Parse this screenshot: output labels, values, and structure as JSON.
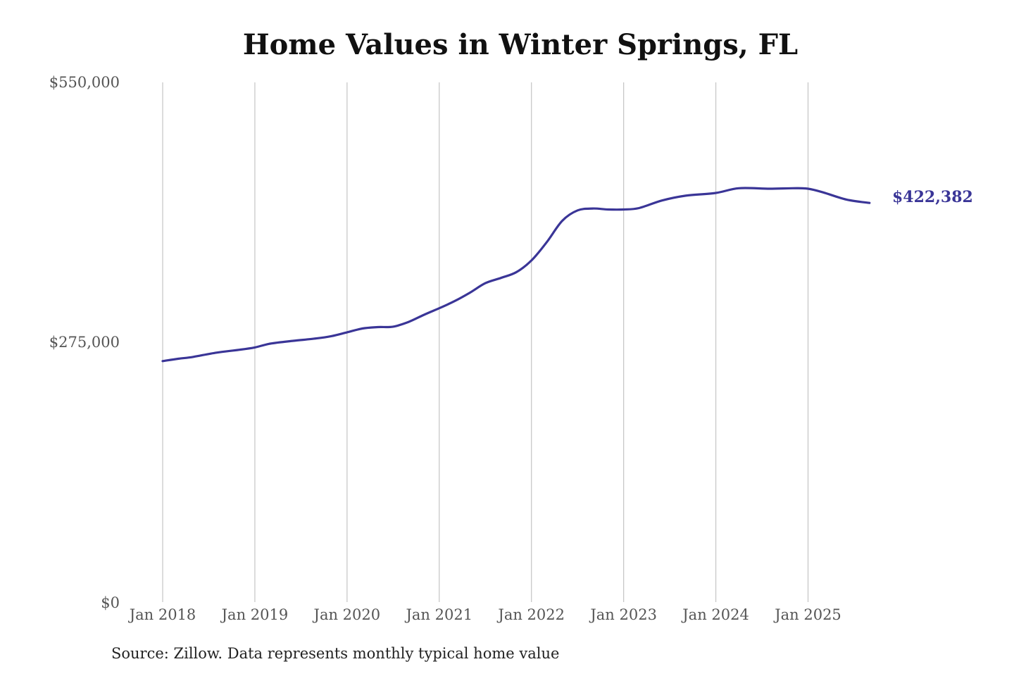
{
  "chart_data": {
    "type": "line",
    "title": "Home Values in Winter Springs, FL",
    "source": "Source: Zillow. Data represents monthly typical home value",
    "y_ticks": [
      {
        "value": 0,
        "label": "$0"
      },
      {
        "value": 275000,
        "label": "$275,000"
      },
      {
        "value": 550000,
        "label": "$550,000"
      }
    ],
    "ylim": [
      0,
      550000
    ],
    "x_ticks": [
      {
        "date": "2018-01",
        "label": "Jan 2018"
      },
      {
        "date": "2019-01",
        "label": "Jan 2019"
      },
      {
        "date": "2020-01",
        "label": "Jan 2020"
      },
      {
        "date": "2021-01",
        "label": "Jan 2021"
      },
      {
        "date": "2022-01",
        "label": "Jan 2022"
      },
      {
        "date": "2023-01",
        "label": "Jan 2023"
      },
      {
        "date": "2024-01",
        "label": "Jan 2024"
      },
      {
        "date": "2025-01",
        "label": "Jan 2025"
      }
    ],
    "grid": "vertical",
    "line_color": "#3a3597",
    "last_value_label": "$422,382",
    "series": [
      {
        "name": "",
        "points": [
          {
            "x": "2018-01",
            "y": 255000
          },
          {
            "x": "2018-03",
            "y": 257500
          },
          {
            "x": "2018-05",
            "y": 259500
          },
          {
            "x": "2018-08",
            "y": 264000
          },
          {
            "x": "2018-11",
            "y": 267000
          },
          {
            "x": "2019-01",
            "y": 269500
          },
          {
            "x": "2019-03",
            "y": 273500
          },
          {
            "x": "2019-06",
            "y": 276500
          },
          {
            "x": "2019-09",
            "y": 279000
          },
          {
            "x": "2019-11",
            "y": 281500
          },
          {
            "x": "2020-01",
            "y": 285500
          },
          {
            "x": "2020-03",
            "y": 289500
          },
          {
            "x": "2020-05",
            "y": 291000
          },
          {
            "x": "2020-07",
            "y": 291500
          },
          {
            "x": "2020-09",
            "y": 296500
          },
          {
            "x": "2020-11",
            "y": 304000
          },
          {
            "x": "2021-01",
            "y": 311000
          },
          {
            "x": "2021-03",
            "y": 318500
          },
          {
            "x": "2021-05",
            "y": 327500
          },
          {
            "x": "2021-07",
            "y": 337500
          },
          {
            "x": "2021-09",
            "y": 343000
          },
          {
            "x": "2021-11",
            "y": 349000
          },
          {
            "x": "2022-01",
            "y": 361500
          },
          {
            "x": "2022-03",
            "y": 381000
          },
          {
            "x": "2022-05",
            "y": 403500
          },
          {
            "x": "2022-07",
            "y": 414500
          },
          {
            "x": "2022-09",
            "y": 416500
          },
          {
            "x": "2022-11",
            "y": 415500
          },
          {
            "x": "2023-01",
            "y": 415500
          },
          {
            "x": "2023-03",
            "y": 417000
          },
          {
            "x": "2023-06",
            "y": 425000
          },
          {
            "x": "2023-09",
            "y": 430000
          },
          {
            "x": "2024-01",
            "y": 433000
          },
          {
            "x": "2024-04",
            "y": 438000
          },
          {
            "x": "2024-08",
            "y": 437500
          },
          {
            "x": "2024-11",
            "y": 438000
          },
          {
            "x": "2025-01",
            "y": 437500
          },
          {
            "x": "2025-03",
            "y": 433500
          },
          {
            "x": "2025-06",
            "y": 426000
          },
          {
            "x": "2025-09",
            "y": 422382
          }
        ]
      }
    ]
  }
}
